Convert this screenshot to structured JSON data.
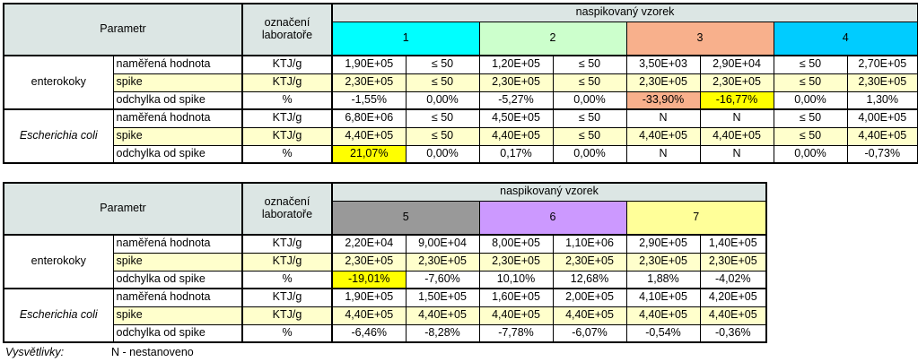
{
  "colors": {
    "header_bg": "#dce6e4",
    "spike_row_bg": "#ffffcc",
    "highlight_yellow": "#ffff00",
    "highlight_orange": "#f8b08c",
    "sample1": "#00ffff",
    "sample2": "#ccffcc",
    "sample3": "#f8b08c",
    "sample4": "#00ccff",
    "sample5": "#999999",
    "sample6": "#cc99ff",
    "sample7": "#ffff99"
  },
  "table1": {
    "parametr": "Parametr",
    "oznaceni": "označení laboratoře",
    "naspikovany": "naspikovaný vzorek",
    "samples": [
      "1",
      "2",
      "3",
      "4"
    ],
    "groups": [
      {
        "name": "enterokoky",
        "rows": [
          {
            "label": "naměřená hodnota",
            "unit": "KTJ/g",
            "values": [
              "1,90E+05",
              "≤ 50",
              "1,20E+05",
              "≤ 50",
              "3,50E+03",
              "2,90E+04",
              "≤ 50",
              "2,70E+05"
            ]
          },
          {
            "label": "spike",
            "unit": "KTJ/g",
            "values": [
              "2,30E+05",
              "≤ 50",
              "2,30E+05",
              "≤ 50",
              "2,30E+05",
              "2,30E+05",
              "≤ 50",
              "2,30E+05"
            ]
          },
          {
            "label": "odchylka od spike",
            "unit": "%",
            "values": [
              "-1,55%",
              "0,00%",
              "-5,27%",
              "0,00%",
              "-33,90%",
              "-16,77%",
              "0,00%",
              "1,30%"
            ]
          }
        ]
      },
      {
        "name": "Escherichia coli",
        "rows": [
          {
            "label": "naměřená hodnota",
            "unit": "KTJ/g",
            "values": [
              "6,80E+06",
              "≤ 50",
              "4,50E+05",
              "≤ 50",
              "N",
              "N",
              "≤ 50",
              "4,00E+05"
            ]
          },
          {
            "label": "spike",
            "unit": "KTJ/g",
            "values": [
              "4,40E+05",
              "≤ 50",
              "4,40E+05",
              "≤ 50",
              "4,40E+05",
              "4,40E+05",
              "≤ 50",
              "4,40E+05"
            ]
          },
          {
            "label": "odchylka od spike",
            "unit": "%",
            "values": [
              "21,07%",
              "0,00%",
              "0,17%",
              "0,00%",
              "N",
              "N",
              "0,00%",
              "-0,73%"
            ]
          }
        ]
      }
    ]
  },
  "table2": {
    "parametr": "Parametr",
    "oznaceni": "označení laboratoře",
    "naspikovany": "naspikovaný vzorek",
    "samples": [
      "5",
      "6",
      "7"
    ],
    "groups": [
      {
        "name": "enterokoky",
        "rows": [
          {
            "label": "naměřená hodnota",
            "unit": "KTJ/g",
            "values": [
              "2,20E+04",
              "9,00E+04",
              "8,00E+05",
              "1,10E+06",
              "2,90E+05",
              "1,40E+05"
            ]
          },
          {
            "label": "spike",
            "unit": "KTJ/g",
            "values": [
              "2,30E+05",
              "2,30E+05",
              "2,30E+05",
              "2,30E+05",
              "2,30E+05",
              "2,30E+05"
            ]
          },
          {
            "label": "odchylka od spike",
            "unit": "%",
            "values": [
              "-19,01%",
              "-7,60%",
              "10,10%",
              "12,68%",
              "1,88%",
              "-4,02%"
            ]
          }
        ]
      },
      {
        "name": "Escherichia coli",
        "rows": [
          {
            "label": "naměřená hodnota",
            "unit": "KTJ/g",
            "values": [
              "1,90E+05",
              "1,50E+05",
              "1,60E+05",
              "2,00E+05",
              "4,10E+05",
              "4,20E+05"
            ]
          },
          {
            "label": "spike",
            "unit": "KTJ/g",
            "values": [
              "4,40E+05",
              "4,40E+05",
              "4,40E+05",
              "4,40E+05",
              "4,40E+05",
              "4,40E+05"
            ]
          },
          {
            "label": "odchylka od spike",
            "unit": "%",
            "values": [
              "-6,46%",
              "-8,28%",
              "-7,78%",
              "-6,07%",
              "-0,54%",
              "-0,36%"
            ]
          }
        ]
      }
    ]
  },
  "legend": {
    "key": "Vysvětlivky:",
    "text": "N - nestanoveno"
  }
}
